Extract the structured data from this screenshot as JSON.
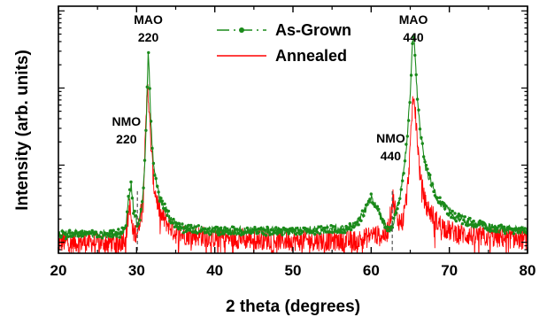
{
  "chart_data": {
    "type": "line",
    "title": "",
    "xlabel": "2 theta (degrees)",
    "ylabel": "Intensity (arb. units)",
    "xlim": [
      20,
      80
    ],
    "y_scale": "log",
    "y_tick_labels_shown": false,
    "x_ticks": [
      "20",
      "30",
      "40",
      "50",
      "60",
      "70",
      "80"
    ],
    "grid": false,
    "legend_position": "top-center",
    "series": [
      {
        "name": "As-Grown",
        "color": "#1a8a1a",
        "style": "dash-dot with circle markers",
        "x": [
          20,
          28.0,
          28.6,
          29.0,
          29.3,
          29.6,
          30.2,
          30.8,
          31.1,
          31.3,
          31.5,
          31.8,
          32.2,
          33.0,
          34.5,
          36,
          40,
          50,
          57,
          58.5,
          59.5,
          60.0,
          60.5,
          61.3,
          62.0,
          62.5,
          63.0,
          63.8,
          64.5,
          65.0,
          65.3,
          65.5,
          65.8,
          66.3,
          67.0,
          68.5,
          70.5,
          73,
          76,
          80
        ],
        "y": [
          1.25,
          1.3,
          1.6,
          3.8,
          5.5,
          2.6,
          1.6,
          3.5,
          14,
          60,
          350,
          38,
          9,
          3.6,
          1.9,
          1.5,
          1.4,
          1.4,
          1.5,
          1.9,
          3.0,
          3.8,
          3.1,
          2.0,
          1.6,
          1.5,
          2.1,
          4.5,
          17,
          80,
          400,
          500,
          110,
          25,
          9,
          3.6,
          2.2,
          1.75,
          1.5,
          1.4
        ]
      },
      {
        "name": "Annealed",
        "color": "#ff0000",
        "style": "solid line",
        "x": [
          20,
          28.0,
          28.7,
          29.1,
          29.5,
          30.2,
          30.8,
          31.1,
          31.4,
          31.7,
          32.2,
          33.0,
          35,
          40,
          50,
          58,
          59.5,
          60.2,
          61.0,
          62.0,
          62.4,
          62.8,
          63.3,
          64.0,
          64.6,
          65.0,
          65.4,
          65.8,
          66.3,
          67.0,
          68.5,
          70,
          73,
          76,
          80
        ],
        "y": [
          1.0,
          1.0,
          1.3,
          3.1,
          1.3,
          1.4,
          4.0,
          18,
          130,
          30,
          5.5,
          2.3,
          1.3,
          1.15,
          1.05,
          1.05,
          1.15,
          1.3,
          1.2,
          1.3,
          2.0,
          3.8,
          2.0,
          1.8,
          4.2,
          16,
          95,
          30,
          6.5,
          3.0,
          1.8,
          1.4,
          1.2,
          1.15,
          1.1
        ]
      }
    ],
    "reference_lines": [
      {
        "x": 30.1,
        "style": "dashed",
        "color": "#555555"
      },
      {
        "x": 62.7,
        "style": "dashed",
        "color": "#555555"
      }
    ],
    "annotations": [
      {
        "lines": [
          "MAO",
          "220"
        ],
        "x": 31.5,
        "y": 380
      },
      {
        "lines": [
          "NMO",
          "220"
        ],
        "x": 28.7,
        "y": 18
      },
      {
        "lines": [
          "MAO",
          "440"
        ],
        "x": 65.4,
        "y": 380
      },
      {
        "lines": [
          "NMO",
          "440"
        ],
        "x": 62.5,
        "y": 11
      }
    ]
  }
}
